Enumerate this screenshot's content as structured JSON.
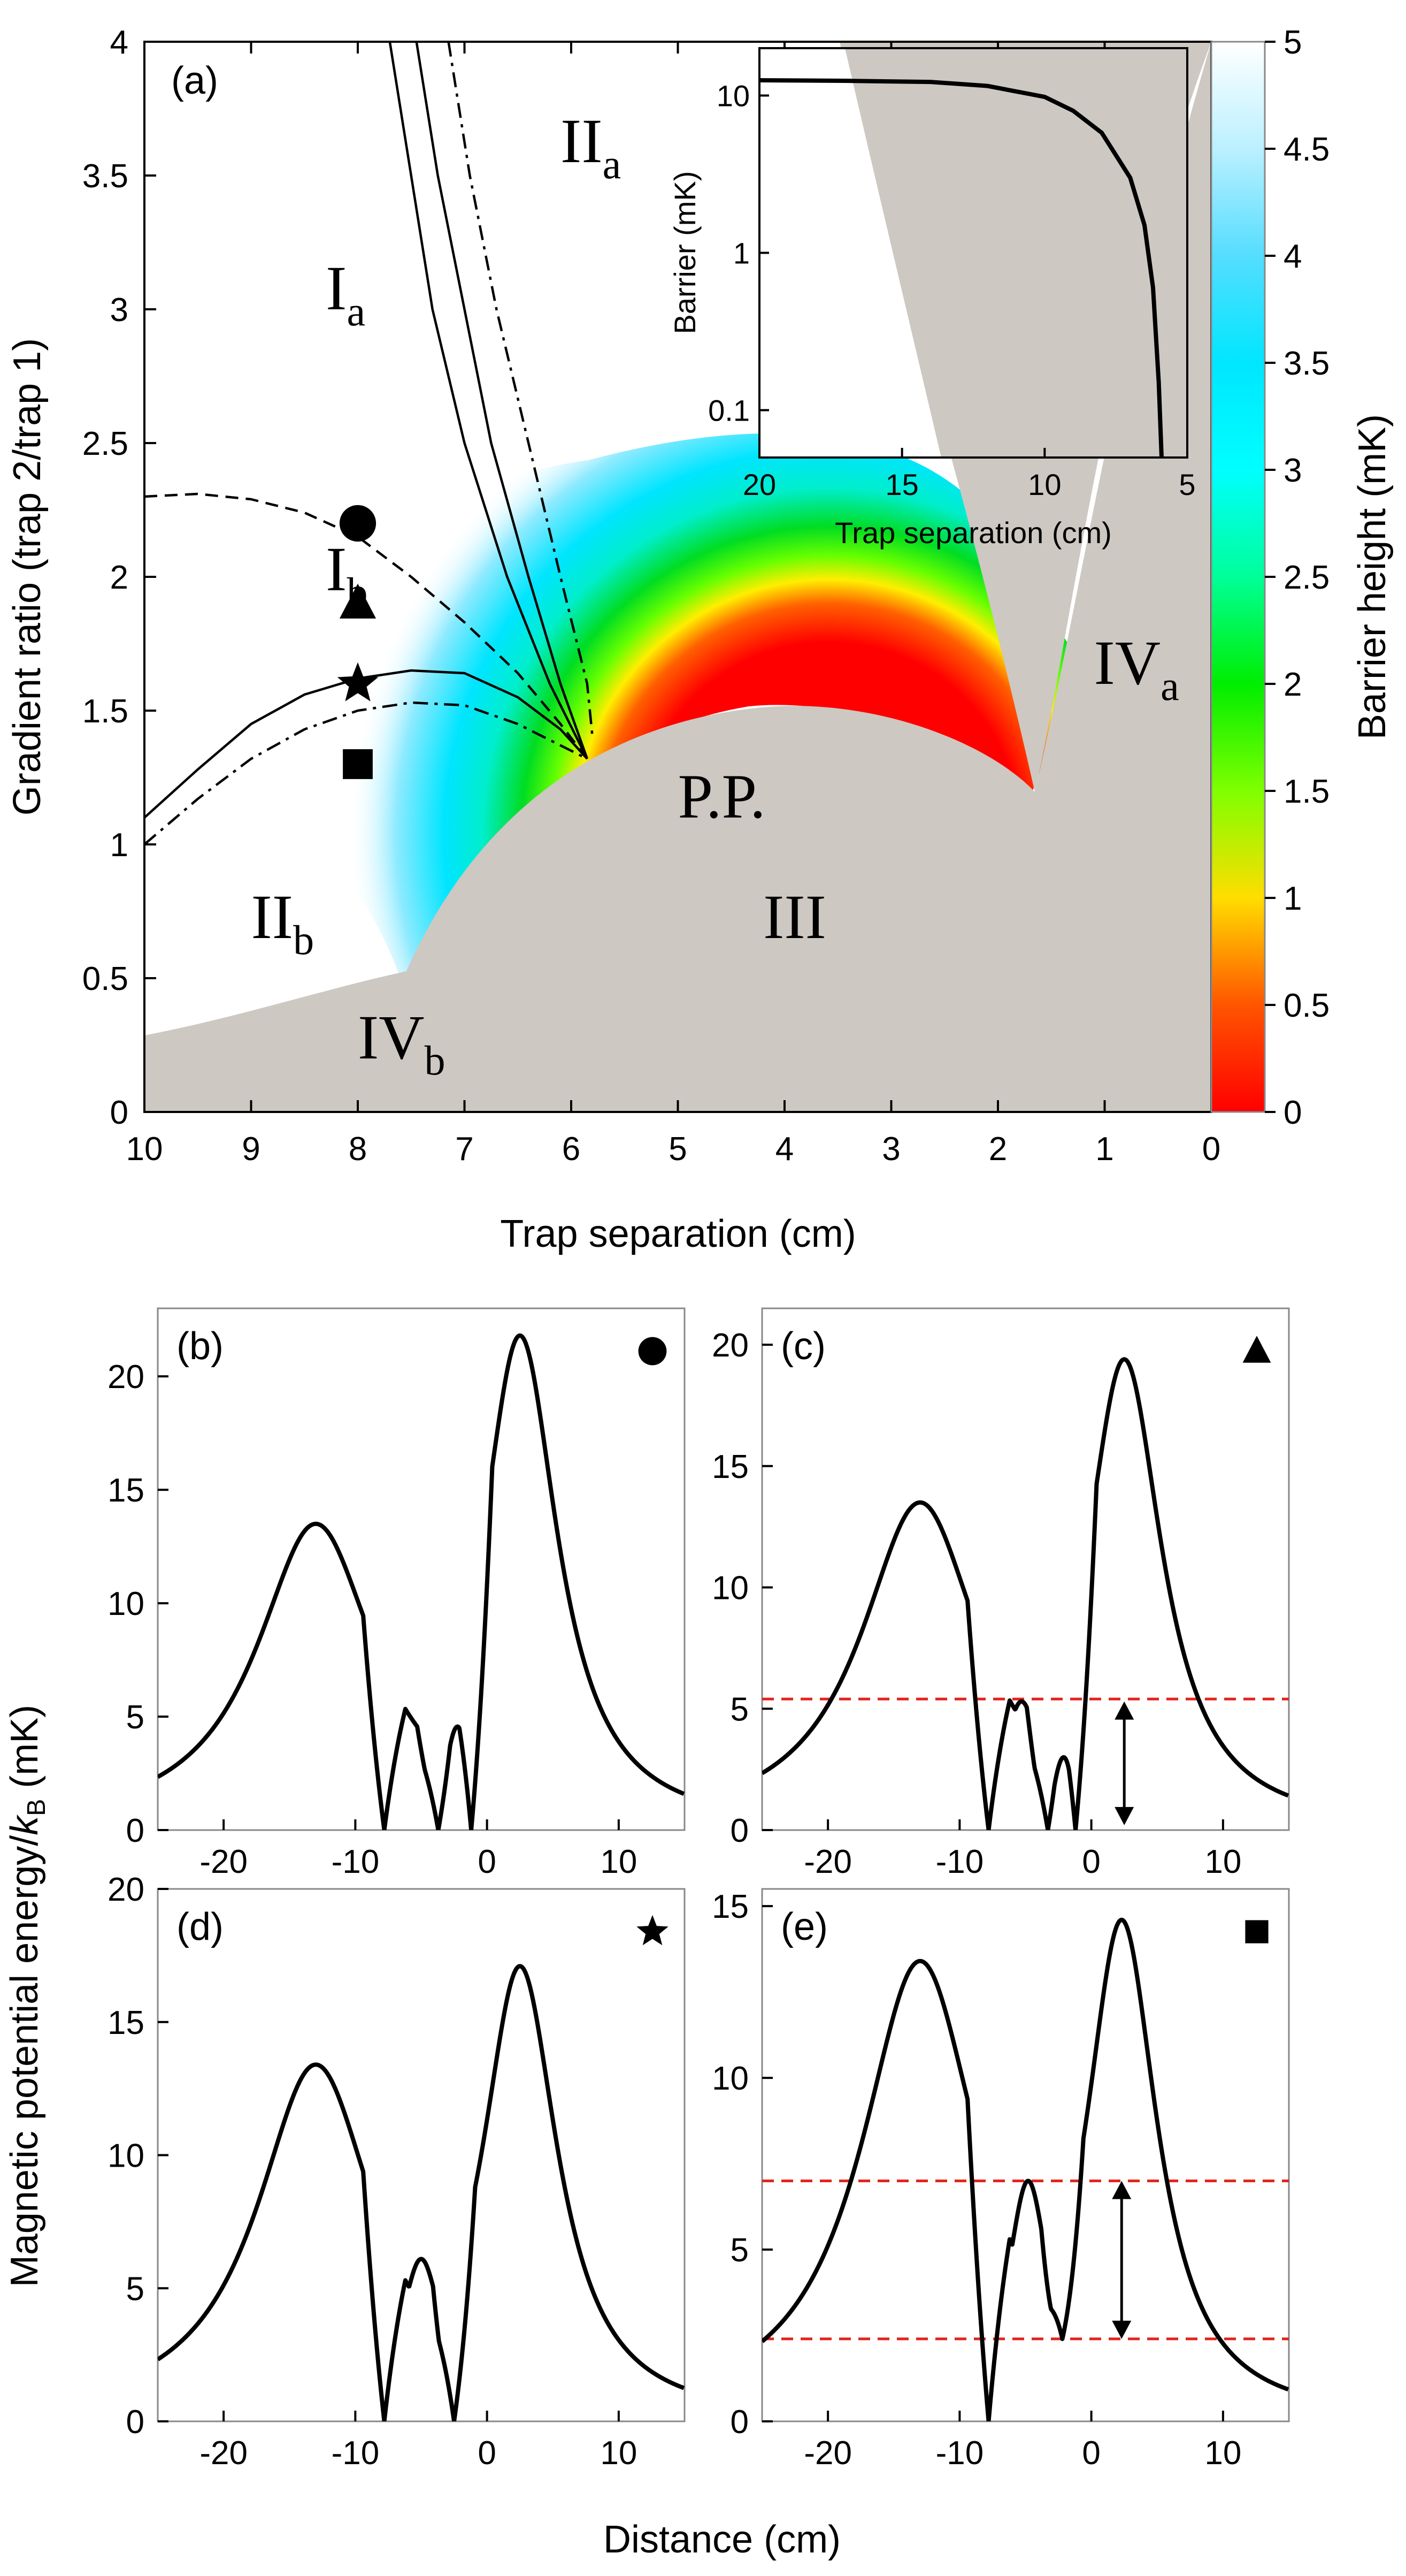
{
  "chart_data": [
    {
      "id": "a",
      "type": "heatmap",
      "panel_label": "(a)",
      "xlabel": "Trap separation (cm)",
      "ylabel": "Gradient ratio (trap 2/trap 1)",
      "xlim": [
        10,
        0
      ],
      "ylim": [
        0,
        4
      ],
      "x_ticks": [
        "10",
        "9",
        "8",
        "7",
        "6",
        "5",
        "4",
        "3",
        "2",
        "1",
        "0"
      ],
      "y_ticks": [
        "0",
        "0.5",
        "1",
        "1.5",
        "2",
        "2.5",
        "3",
        "3.5",
        "4"
      ],
      "colorbar": {
        "label": "Barrier height (mK)",
        "range": [
          0,
          5
        ],
        "ticks": [
          "0",
          "0.5",
          "1",
          "1.5",
          "2",
          "2.5",
          "3",
          "3.5",
          "4",
          "4.5",
          "5"
        ]
      },
      "regions": [
        {
          "name": "I",
          "sub": "a",
          "x": 8.3,
          "y": 3.0
        },
        {
          "name": "II",
          "sub": "a",
          "x": 6.1,
          "y": 3.55
        },
        {
          "name": "I",
          "sub": "b",
          "x": 8.3,
          "y": 1.95
        },
        {
          "name": "IV",
          "sub": "a",
          "x": 1.1,
          "y": 1.6
        },
        {
          "name": "P.P.",
          "sub": "",
          "x": 5.0,
          "y": 1.1
        },
        {
          "name": "II",
          "sub": "b",
          "x": 9.0,
          "y": 0.65
        },
        {
          "name": "III",
          "sub": "",
          "x": 4.2,
          "y": 0.65
        },
        {
          "name": "IV",
          "sub": "b",
          "x": 8.0,
          "y": 0.2
        }
      ],
      "markers": [
        {
          "shape": "circle",
          "x": 8.0,
          "y": 2.2
        },
        {
          "shape": "triangle",
          "x": 8.0,
          "y": 1.9
        },
        {
          "shape": "star",
          "x": 8.0,
          "y": 1.6
        },
        {
          "shape": "square",
          "x": 8.0,
          "y": 1.3
        }
      ],
      "curves": {
        "solid_left": [
          [
            10,
            1.1
          ],
          [
            9.5,
            1.28
          ],
          [
            9,
            1.45
          ],
          [
            8.5,
            1.56
          ],
          [
            8,
            1.62
          ],
          [
            7.5,
            1.65
          ],
          [
            7,
            1.64
          ],
          [
            6.5,
            1.55
          ],
          [
            6.1,
            1.43
          ],
          [
            5.85,
            1.32
          ]
        ],
        "dashdot_left": [
          [
            10,
            1.0
          ],
          [
            9.5,
            1.17
          ],
          [
            9,
            1.32
          ],
          [
            8.5,
            1.43
          ],
          [
            8,
            1.5
          ],
          [
            7.5,
            1.53
          ],
          [
            7,
            1.52
          ],
          [
            6.5,
            1.45
          ],
          [
            6.1,
            1.37
          ],
          [
            5.85,
            1.32
          ]
        ],
        "dashed": [
          [
            10,
            2.3
          ],
          [
            9.5,
            2.31
          ],
          [
            9,
            2.29
          ],
          [
            8.5,
            2.24
          ],
          [
            8,
            2.15
          ],
          [
            7.5,
            2.0
          ],
          [
            7,
            1.83
          ],
          [
            6.5,
            1.64
          ],
          [
            6.1,
            1.45
          ],
          [
            5.85,
            1.32
          ]
        ],
        "solid_upper_a": [
          [
            7.7,
            4.0
          ],
          [
            7.5,
            3.5
          ],
          [
            7.3,
            3.0
          ],
          [
            7.0,
            2.5
          ],
          [
            6.6,
            2.0
          ],
          [
            6.2,
            1.6
          ],
          [
            5.85,
            1.32
          ]
        ],
        "solid_upper_b": [
          [
            7.45,
            4.0
          ],
          [
            7.25,
            3.5
          ],
          [
            7.0,
            3.0
          ],
          [
            6.75,
            2.5
          ],
          [
            6.4,
            2.0
          ],
          [
            6.1,
            1.6
          ],
          [
            5.85,
            1.32
          ]
        ],
        "dashdot_upper": [
          [
            7.15,
            4.0
          ],
          [
            6.95,
            3.5
          ],
          [
            6.7,
            3.0
          ],
          [
            6.4,
            2.5
          ],
          [
            6.1,
            2.0
          ],
          [
            5.85,
            1.6
          ],
          [
            5.8,
            1.4
          ]
        ]
      },
      "inset": {
        "xlabel": "Trap separation (cm)",
        "ylabel": "Barrier (mK)",
        "x_ticks": [
          "20",
          "15",
          "10",
          "5"
        ],
        "y_ticks": [
          "0.1",
          "1",
          "10"
        ],
        "xlim": [
          20,
          5
        ],
        "ylim_log": [
          0.05,
          20
        ],
        "curve": [
          [
            20,
            12.5
          ],
          [
            17,
            12.4
          ],
          [
            14,
            12.2
          ],
          [
            12,
            11.5
          ],
          [
            10,
            9.8
          ],
          [
            9,
            8.0
          ],
          [
            8,
            5.8
          ],
          [
            7,
            3.0
          ],
          [
            6.5,
            1.5
          ],
          [
            6.2,
            0.6
          ],
          [
            6.0,
            0.15
          ],
          [
            5.9,
            0.05
          ]
        ]
      }
    },
    {
      "id": "b",
      "type": "line",
      "panel_label": "(b)",
      "marker": "circle",
      "xlim": [
        -25,
        15
      ],
      "ylim": [
        0,
        23
      ],
      "x_ticks": [
        "-20",
        "-10",
        "0",
        "10"
      ],
      "y_ticks": [
        "0",
        "5",
        "10",
        "15",
        "20"
      ],
      "peaks": [
        [
          -13,
          13.5,
          5.5
        ],
        [
          -5.5,
          4.6,
          1.8
        ],
        [
          -2.5,
          4.6,
          1.2
        ],
        [
          2.5,
          21.8,
          3.5
        ]
      ],
      "zeros": [
        -7.8,
        -3.7,
        -1.2
      ],
      "dashed_levels": [],
      "arrow": null
    },
    {
      "id": "c",
      "type": "line",
      "panel_label": "(c)",
      "marker": "triangle",
      "xlim": [
        -25,
        15
      ],
      "ylim": [
        0,
        21.5
      ],
      "x_ticks": [
        "-20",
        "-10",
        "0",
        "10"
      ],
      "y_ticks": [
        "0",
        "5",
        "10",
        "15",
        "20"
      ],
      "peaks": [
        [
          -13,
          13.5,
          5.5
        ],
        [
          -5.3,
          5.3,
          1.8
        ],
        [
          -2.4,
          2.3,
          0.9
        ],
        [
          2.5,
          19.4,
          3.5
        ]
      ],
      "zeros": [
        -7.8,
        -3.3,
        -1.2
      ],
      "dashed_levels": [
        5.4
      ],
      "arrow": {
        "x": 2.5,
        "from": 0.2,
        "to": 5.3
      }
    },
    {
      "id": "d",
      "type": "line",
      "panel_label": "(d)",
      "marker": "star",
      "xlim": [
        -25,
        15
      ],
      "ylim": [
        0,
        20
      ],
      "x_ticks": [
        "-20",
        "-10",
        "0",
        "10"
      ],
      "y_ticks": [
        "0",
        "5",
        "10",
        "15",
        "20"
      ],
      "peaks": [
        [
          -13,
          13.4,
          5.5
        ],
        [
          -5.0,
          6.1,
          2.0
        ],
        [
          2.5,
          17.1,
          3.5
        ]
      ],
      "zeros": [
        -7.8,
        -2.5
      ],
      "dashed_levels": [],
      "arrow": null
    },
    {
      "id": "e",
      "type": "line",
      "panel_label": "(e)",
      "marker": "square",
      "xlim": [
        -25,
        15
      ],
      "ylim": [
        0,
        15.5
      ],
      "x_ticks": [
        "-20",
        "-10",
        "0",
        "10"
      ],
      "y_ticks": [
        "0",
        "5",
        "10",
        "15"
      ],
      "peaks": [
        [
          -13,
          13.4,
          5.5
        ],
        [
          -4.8,
          7.0,
          2.0
        ],
        [
          2.3,
          14.6,
          3.3
        ]
      ],
      "zeros": [
        -7.8
      ],
      "min_points": [
        [
          -2.2,
          2.4
        ]
      ],
      "dashed_levels": [
        7.0,
        2.4
      ],
      "arrow": {
        "x": 2.3,
        "from": 2.4,
        "to": 7.0
      }
    }
  ],
  "shared": {
    "bottom_xlabel": "Distance (cm)",
    "bottom_ylabel_main": "Magnetic potential energy/",
    "bottom_ylabel_k": "k",
    "bottom_ylabel_sub": "B",
    "bottom_ylabel_unit": " (mK)"
  },
  "colors": {
    "gray_region": "#cdc8c2",
    "dashed_red": "#e0231c"
  }
}
